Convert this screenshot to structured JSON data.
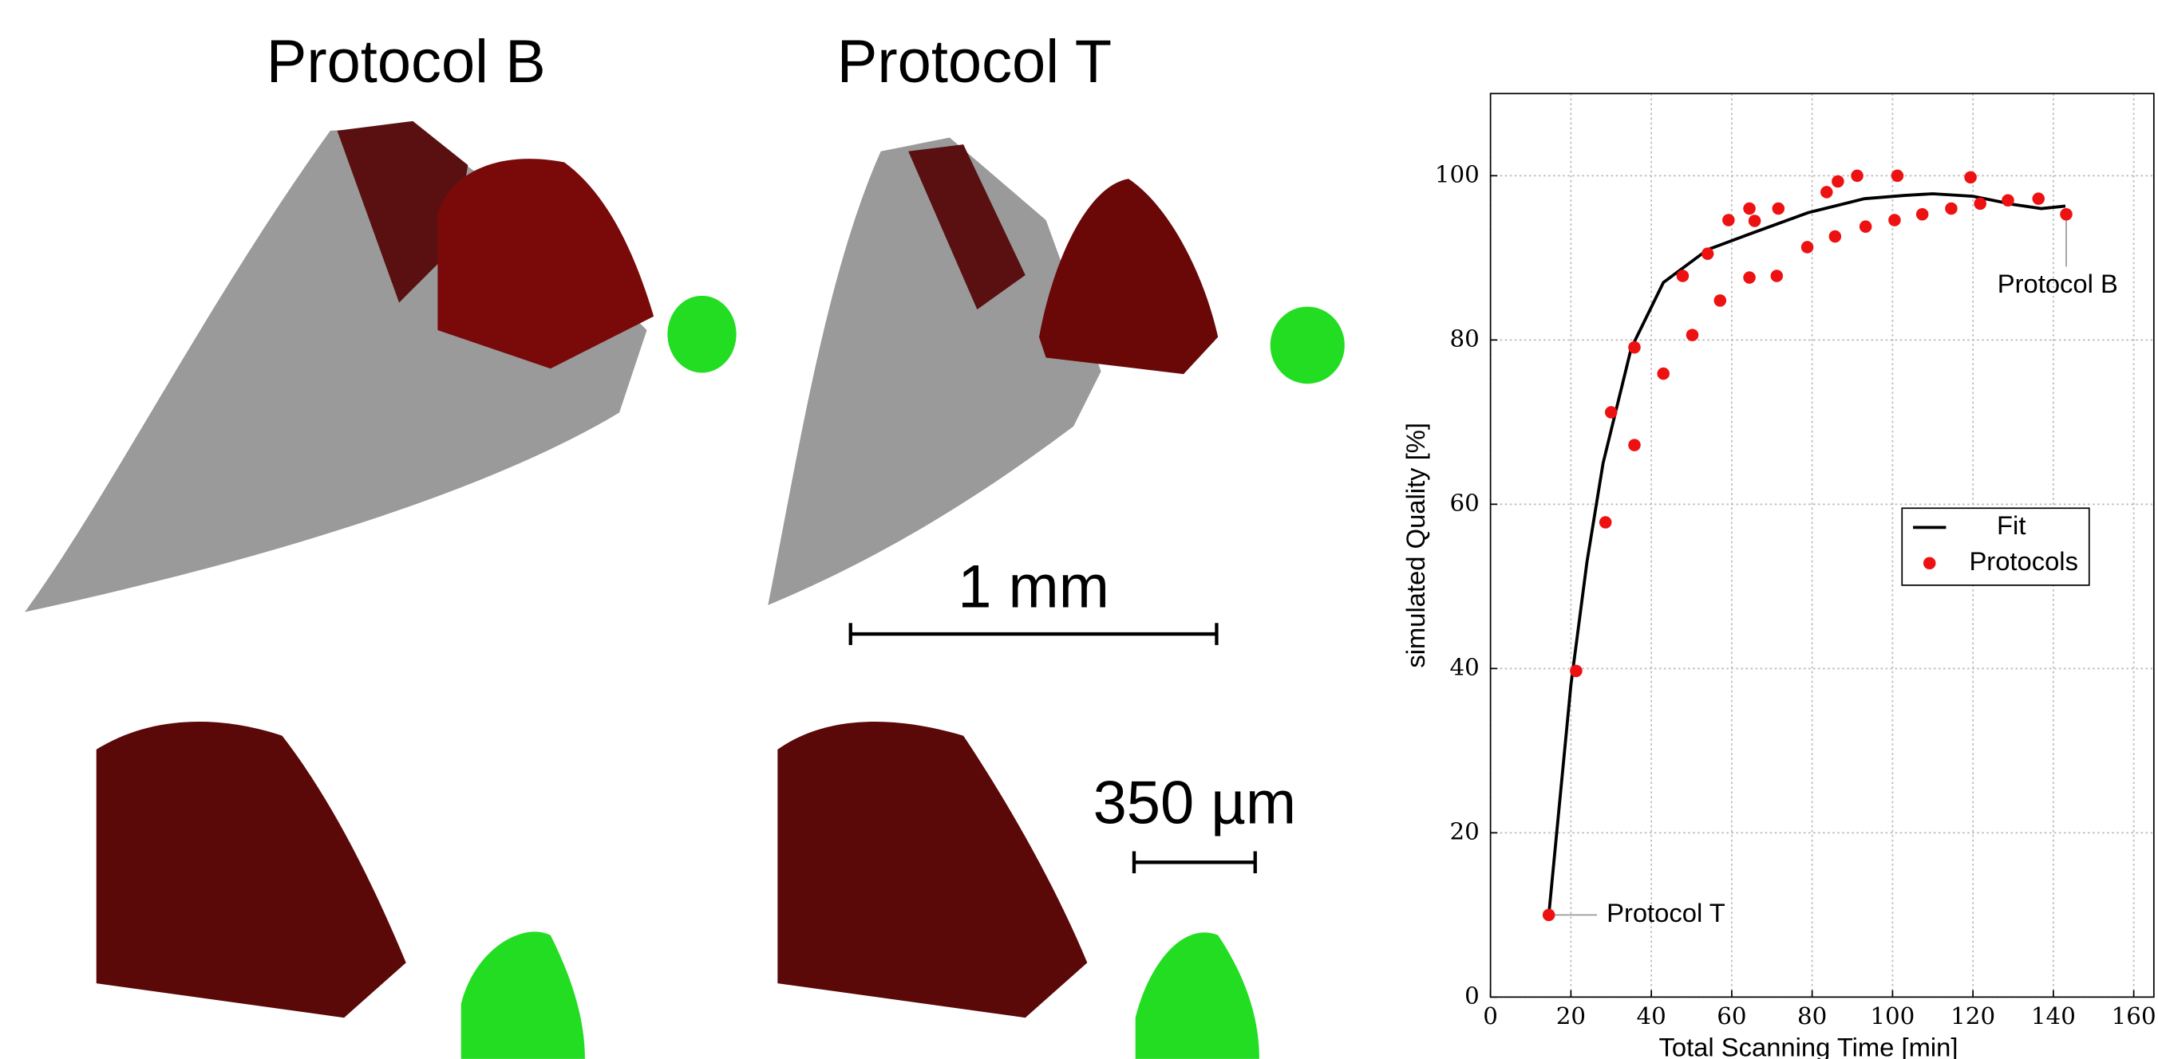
{
  "panels": {
    "titles": [
      "Protocol B",
      "Protocol T"
    ],
    "scale_bars": [
      "1 mm",
      "350 µm"
    ]
  },
  "chart_data": {
    "type": "scatter",
    "xlabel": "Total Scanning Time [min]",
    "ylabel": "simulated Quality [%]",
    "xlim": [
      0,
      165
    ],
    "ylim": [
      0,
      110
    ],
    "xticks": [
      0,
      20,
      40,
      60,
      80,
      100,
      120,
      140,
      160
    ],
    "yticks": [
      0,
      20,
      40,
      60,
      80,
      100
    ],
    "grid": true,
    "legend": "right",
    "series": [
      {
        "name": "Fit",
        "kind": "line",
        "color": "#000000",
        "x": [
          14.5,
          20,
          24,
          28,
          35,
          43,
          54,
          65,
          79,
          93,
          103,
          110,
          120,
          130,
          137,
          143
        ],
        "values": [
          10,
          38,
          53,
          65,
          79,
          87,
          91,
          93,
          95.5,
          97.2,
          97.6,
          97.8,
          97.5,
          96.5,
          96,
          96.3
        ]
      },
      {
        "name": "Protocols",
        "kind": "points",
        "color": "#ee1111",
        "x": [
          14.5,
          21.3,
          28.6,
          30,
          35.8,
          35.8,
          43,
          47.8,
          50.2,
          54,
          57.1,
          59.2,
          64.4,
          65.7,
          64.4,
          71.6,
          71.2,
          78.8,
          83.6,
          85.7,
          86.4,
          91.2,
          93.3,
          101.2,
          100.5,
          107.4,
          114.6,
          119.4,
          121.8,
          128.7,
          136.3,
          143.2
        ],
        "values": [
          10,
          39.7,
          57.8,
          71.2,
          67.2,
          79.1,
          75.9,
          87.8,
          80.6,
          90.5,
          84.8,
          94.6,
          96,
          94.5,
          87.6,
          96,
          87.8,
          91.3,
          98,
          92.6,
          99.3,
          100,
          93.8,
          100,
          94.6,
          95.3,
          96,
          99.8,
          96.6,
          97,
          97.2,
          95.3
        ],
        "point_labels": [
          "Protocol T",
          null,
          null,
          null,
          null,
          null,
          null,
          null,
          null,
          null,
          null,
          null,
          null,
          null,
          null,
          null,
          null,
          null,
          null,
          null,
          null,
          null,
          null,
          null,
          null,
          null,
          null,
          null,
          null,
          null,
          null,
          "Protocol B"
        ]
      }
    ]
  }
}
